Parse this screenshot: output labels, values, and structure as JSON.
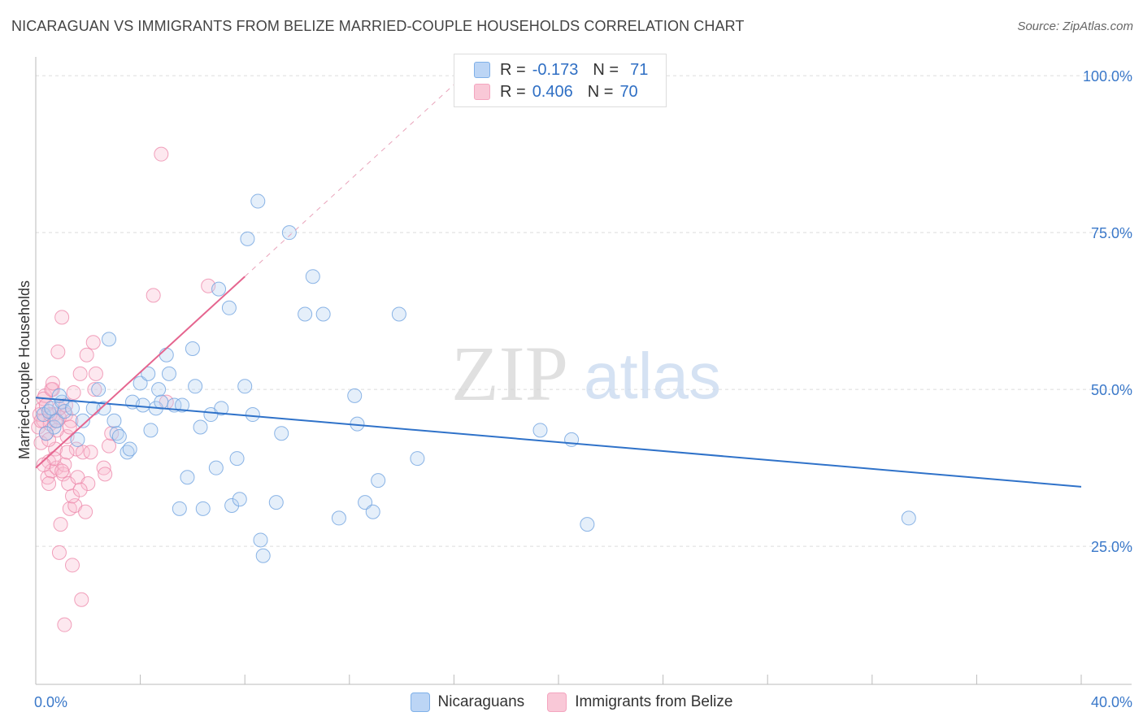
{
  "title": "NICARAGUAN VS IMMIGRANTS FROM BELIZE MARRIED-COUPLE HOUSEHOLDS CORRELATION CHART",
  "source": "Source: ZipAtlas.com",
  "watermark": {
    "zip": "ZIP",
    "atlas": "atlas"
  },
  "legend_top": [
    {
      "r_label": "R =",
      "r_value": "-0.173",
      "n_label": "N =",
      "n_value": "71"
    },
    {
      "r_label": "R =",
      "r_value": "0.406",
      "n_label": "N =",
      "n_value": "70"
    }
  ],
  "chart_data": {
    "type": "scatter",
    "title": "NICARAGUAN VS IMMIGRANTS FROM BELIZE MARRIED-COUPLE HOUSEHOLDS CORRELATION CHART",
    "xlabel": "",
    "ylabel": "Married-couple Households",
    "xlim": [
      0,
      40
    ],
    "ylim": [
      3,
      103
    ],
    "x_tick_labels": [
      "0.0%",
      "40.0%"
    ],
    "y_ticks": [
      25,
      50,
      75,
      100
    ],
    "y_tick_labels": [
      "25.0%",
      "50.0%",
      "75.0%",
      "100.0%"
    ],
    "colors": {
      "blue": "#7fb0e8",
      "blue_line": "#2f72c9",
      "pink": "#f4a5bf",
      "pink_line": "#e5658f"
    },
    "series": [
      {
        "name": "Nicaraguans",
        "color": "#7fb0e8",
        "points": [
          [
            0.3,
            46
          ],
          [
            0.5,
            46.5
          ],
          [
            0.6,
            47
          ],
          [
            0.7,
            44
          ],
          [
            0.8,
            45
          ],
          [
            1.0,
            48
          ],
          [
            1.1,
            46.5
          ],
          [
            1.4,
            47
          ],
          [
            1.8,
            45
          ],
          [
            2.4,
            50
          ],
          [
            2.6,
            47
          ],
          [
            2.8,
            58
          ],
          [
            3.0,
            45
          ],
          [
            3.1,
            43
          ],
          [
            3.2,
            42.5
          ],
          [
            3.5,
            40
          ],
          [
            3.6,
            40.5
          ],
          [
            3.7,
            48
          ],
          [
            4.0,
            51
          ],
          [
            4.1,
            47.5
          ],
          [
            4.3,
            52.5
          ],
          [
            4.4,
            43.5
          ],
          [
            4.6,
            47
          ],
          [
            4.7,
            50
          ],
          [
            4.8,
            48
          ],
          [
            5.0,
            55.5
          ],
          [
            5.1,
            52.5
          ],
          [
            5.3,
            47.5
          ],
          [
            5.5,
            31
          ],
          [
            5.6,
            47.5
          ],
          [
            5.8,
            36
          ],
          [
            6.0,
            56.5
          ],
          [
            6.1,
            50.5
          ],
          [
            6.3,
            44
          ],
          [
            6.4,
            31
          ],
          [
            6.7,
            46
          ],
          [
            6.9,
            37.5
          ],
          [
            7.0,
            66
          ],
          [
            7.1,
            47
          ],
          [
            7.4,
            63
          ],
          [
            7.5,
            31.5
          ],
          [
            7.7,
            39
          ],
          [
            7.8,
            32.5
          ],
          [
            8.0,
            50.5
          ],
          [
            8.1,
            74
          ],
          [
            8.3,
            46
          ],
          [
            8.5,
            80
          ],
          [
            8.6,
            26
          ],
          [
            8.7,
            23.5
          ],
          [
            9.2,
            32
          ],
          [
            9.4,
            43
          ],
          [
            9.7,
            75
          ],
          [
            10.3,
            62
          ],
          [
            10.6,
            68
          ],
          [
            11.0,
            62
          ],
          [
            11.6,
            29.5
          ],
          [
            12.2,
            49
          ],
          [
            12.3,
            44.5
          ],
          [
            12.6,
            32
          ],
          [
            12.9,
            30.5
          ],
          [
            13.1,
            35.5
          ],
          [
            13.9,
            62
          ],
          [
            14.6,
            39
          ],
          [
            19.3,
            43.5
          ],
          [
            20.5,
            42
          ],
          [
            21.1,
            28.5
          ],
          [
            33.4,
            29.5
          ],
          [
            0.4,
            43
          ],
          [
            1.6,
            42
          ],
          [
            0.9,
            49
          ],
          [
            2.2,
            47
          ]
        ]
      },
      {
        "name": "Immigrants from Belize",
        "color": "#f4a5bf",
        "points": [
          [
            0.1,
            44
          ],
          [
            0.15,
            46
          ],
          [
            0.2,
            41.5
          ],
          [
            0.25,
            47
          ],
          [
            0.3,
            45
          ],
          [
            0.35,
            49
          ],
          [
            0.4,
            43
          ],
          [
            0.45,
            36
          ],
          [
            0.5,
            38.5
          ],
          [
            0.55,
            44.5
          ],
          [
            0.6,
            37
          ],
          [
            0.65,
            50
          ],
          [
            0.7,
            46
          ],
          [
            0.75,
            40.5
          ],
          [
            0.8,
            37.5
          ],
          [
            0.85,
            56
          ],
          [
            0.9,
            24
          ],
          [
            0.95,
            28.5
          ],
          [
            1.0,
            61.5
          ],
          [
            1.05,
            36.5
          ],
          [
            1.1,
            38
          ],
          [
            1.15,
            46
          ],
          [
            1.2,
            42.5
          ],
          [
            1.25,
            35
          ],
          [
            1.3,
            31
          ],
          [
            1.35,
            45
          ],
          [
            1.4,
            22
          ],
          [
            1.45,
            49.5
          ],
          [
            1.5,
            31.5
          ],
          [
            1.55,
            40.5
          ],
          [
            1.6,
            36
          ],
          [
            1.7,
            52.5
          ],
          [
            1.75,
            16.5
          ],
          [
            1.8,
            40
          ],
          [
            1.9,
            30.5
          ],
          [
            1.95,
            55.5
          ],
          [
            2.0,
            35
          ],
          [
            2.2,
            57.5
          ],
          [
            2.25,
            50
          ],
          [
            2.3,
            52.5
          ],
          [
            2.6,
            37.5
          ],
          [
            2.65,
            36.5
          ],
          [
            2.8,
            41
          ],
          [
            2.9,
            43
          ],
          [
            4.5,
            65
          ],
          [
            4.8,
            87.5
          ],
          [
            5.0,
            48
          ],
          [
            6.6,
            66.5
          ],
          [
            0.3,
            48.5
          ],
          [
            0.5,
            42
          ],
          [
            0.7,
            39
          ],
          [
            1.1,
            12.5
          ],
          [
            0.4,
            47.5
          ],
          [
            0.9,
            45.5
          ],
          [
            1.3,
            44
          ],
          [
            0.2,
            45
          ],
          [
            0.6,
            50
          ],
          [
            0.8,
            43.5
          ],
          [
            1.0,
            37
          ],
          [
            1.2,
            40
          ],
          [
            0.5,
            35
          ],
          [
            1.4,
            33
          ],
          [
            0.3,
            38
          ],
          [
            0.9,
            47
          ],
          [
            1.7,
            34
          ],
          [
            2.1,
            40
          ],
          [
            0.65,
            51
          ],
          [
            0.55,
            46
          ],
          [
            0.75,
            45
          ],
          [
            1.15,
            47.5
          ]
        ]
      }
    ],
    "trend_lines": [
      {
        "series": "Nicaraguans",
        "x": [
          0,
          40
        ],
        "y": [
          48.7,
          34.5
        ]
      },
      {
        "series": "Immigrants from Belize",
        "x": [
          0,
          8
        ],
        "y": [
          37.5,
          68.0
        ],
        "dashed_to": [
          16.5,
          100.5
        ]
      }
    ]
  },
  "bottom_legend": [
    "Nicaraguans",
    "Immigrants from Belize"
  ]
}
